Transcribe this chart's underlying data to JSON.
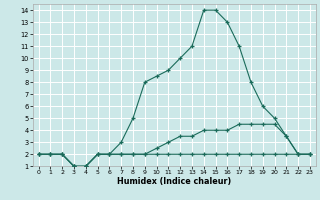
{
  "xlabel": "Humidex (Indice chaleur)",
  "xlim": [
    -0.5,
    23.5
  ],
  "ylim": [
    1,
    14.5
  ],
  "yticks": [
    1,
    2,
    3,
    4,
    5,
    6,
    7,
    8,
    9,
    10,
    11,
    12,
    13,
    14
  ],
  "xticks": [
    0,
    1,
    2,
    3,
    4,
    5,
    6,
    7,
    8,
    9,
    10,
    11,
    12,
    13,
    14,
    15,
    16,
    17,
    18,
    19,
    20,
    21,
    22,
    23
  ],
  "line_color": "#1a6b5a",
  "bg_color": "#cce8e8",
  "grid_color": "#ffffff",
  "line1_x": [
    0,
    1,
    2,
    3,
    4,
    5,
    6,
    7,
    8,
    9,
    10,
    11,
    12,
    13,
    14,
    15,
    16,
    17,
    18,
    19,
    20,
    21,
    22,
    23
  ],
  "line1_y": [
    2,
    2,
    2,
    1,
    1,
    2,
    2,
    3,
    5,
    8,
    8.5,
    9,
    10,
    11,
    14,
    14,
    13,
    11,
    8,
    6,
    5,
    3.5,
    2,
    2
  ],
  "line2_x": [
    0,
    1,
    2,
    3,
    4,
    5,
    6,
    7,
    8,
    9,
    10,
    11,
    12,
    13,
    14,
    15,
    16,
    17,
    18,
    19,
    20,
    21,
    22,
    23
  ],
  "line2_y": [
    2,
    2,
    2,
    1,
    1,
    2,
    2,
    2,
    2,
    2,
    2.5,
    3,
    3.5,
    3.5,
    4,
    4,
    4,
    4.5,
    4.5,
    4.5,
    4.5,
    3.5,
    2,
    2
  ],
  "line3_x": [
    0,
    1,
    2,
    3,
    4,
    5,
    6,
    7,
    8,
    9,
    10,
    11,
    12,
    13,
    14,
    15,
    16,
    17,
    18,
    19,
    20,
    21,
    22,
    23
  ],
  "line3_y": [
    2,
    2,
    2,
    1,
    1,
    2,
    2,
    2,
    2,
    2,
    2,
    2,
    2,
    2,
    2,
    2,
    2,
    2,
    2,
    2,
    2,
    2,
    2,
    2
  ]
}
